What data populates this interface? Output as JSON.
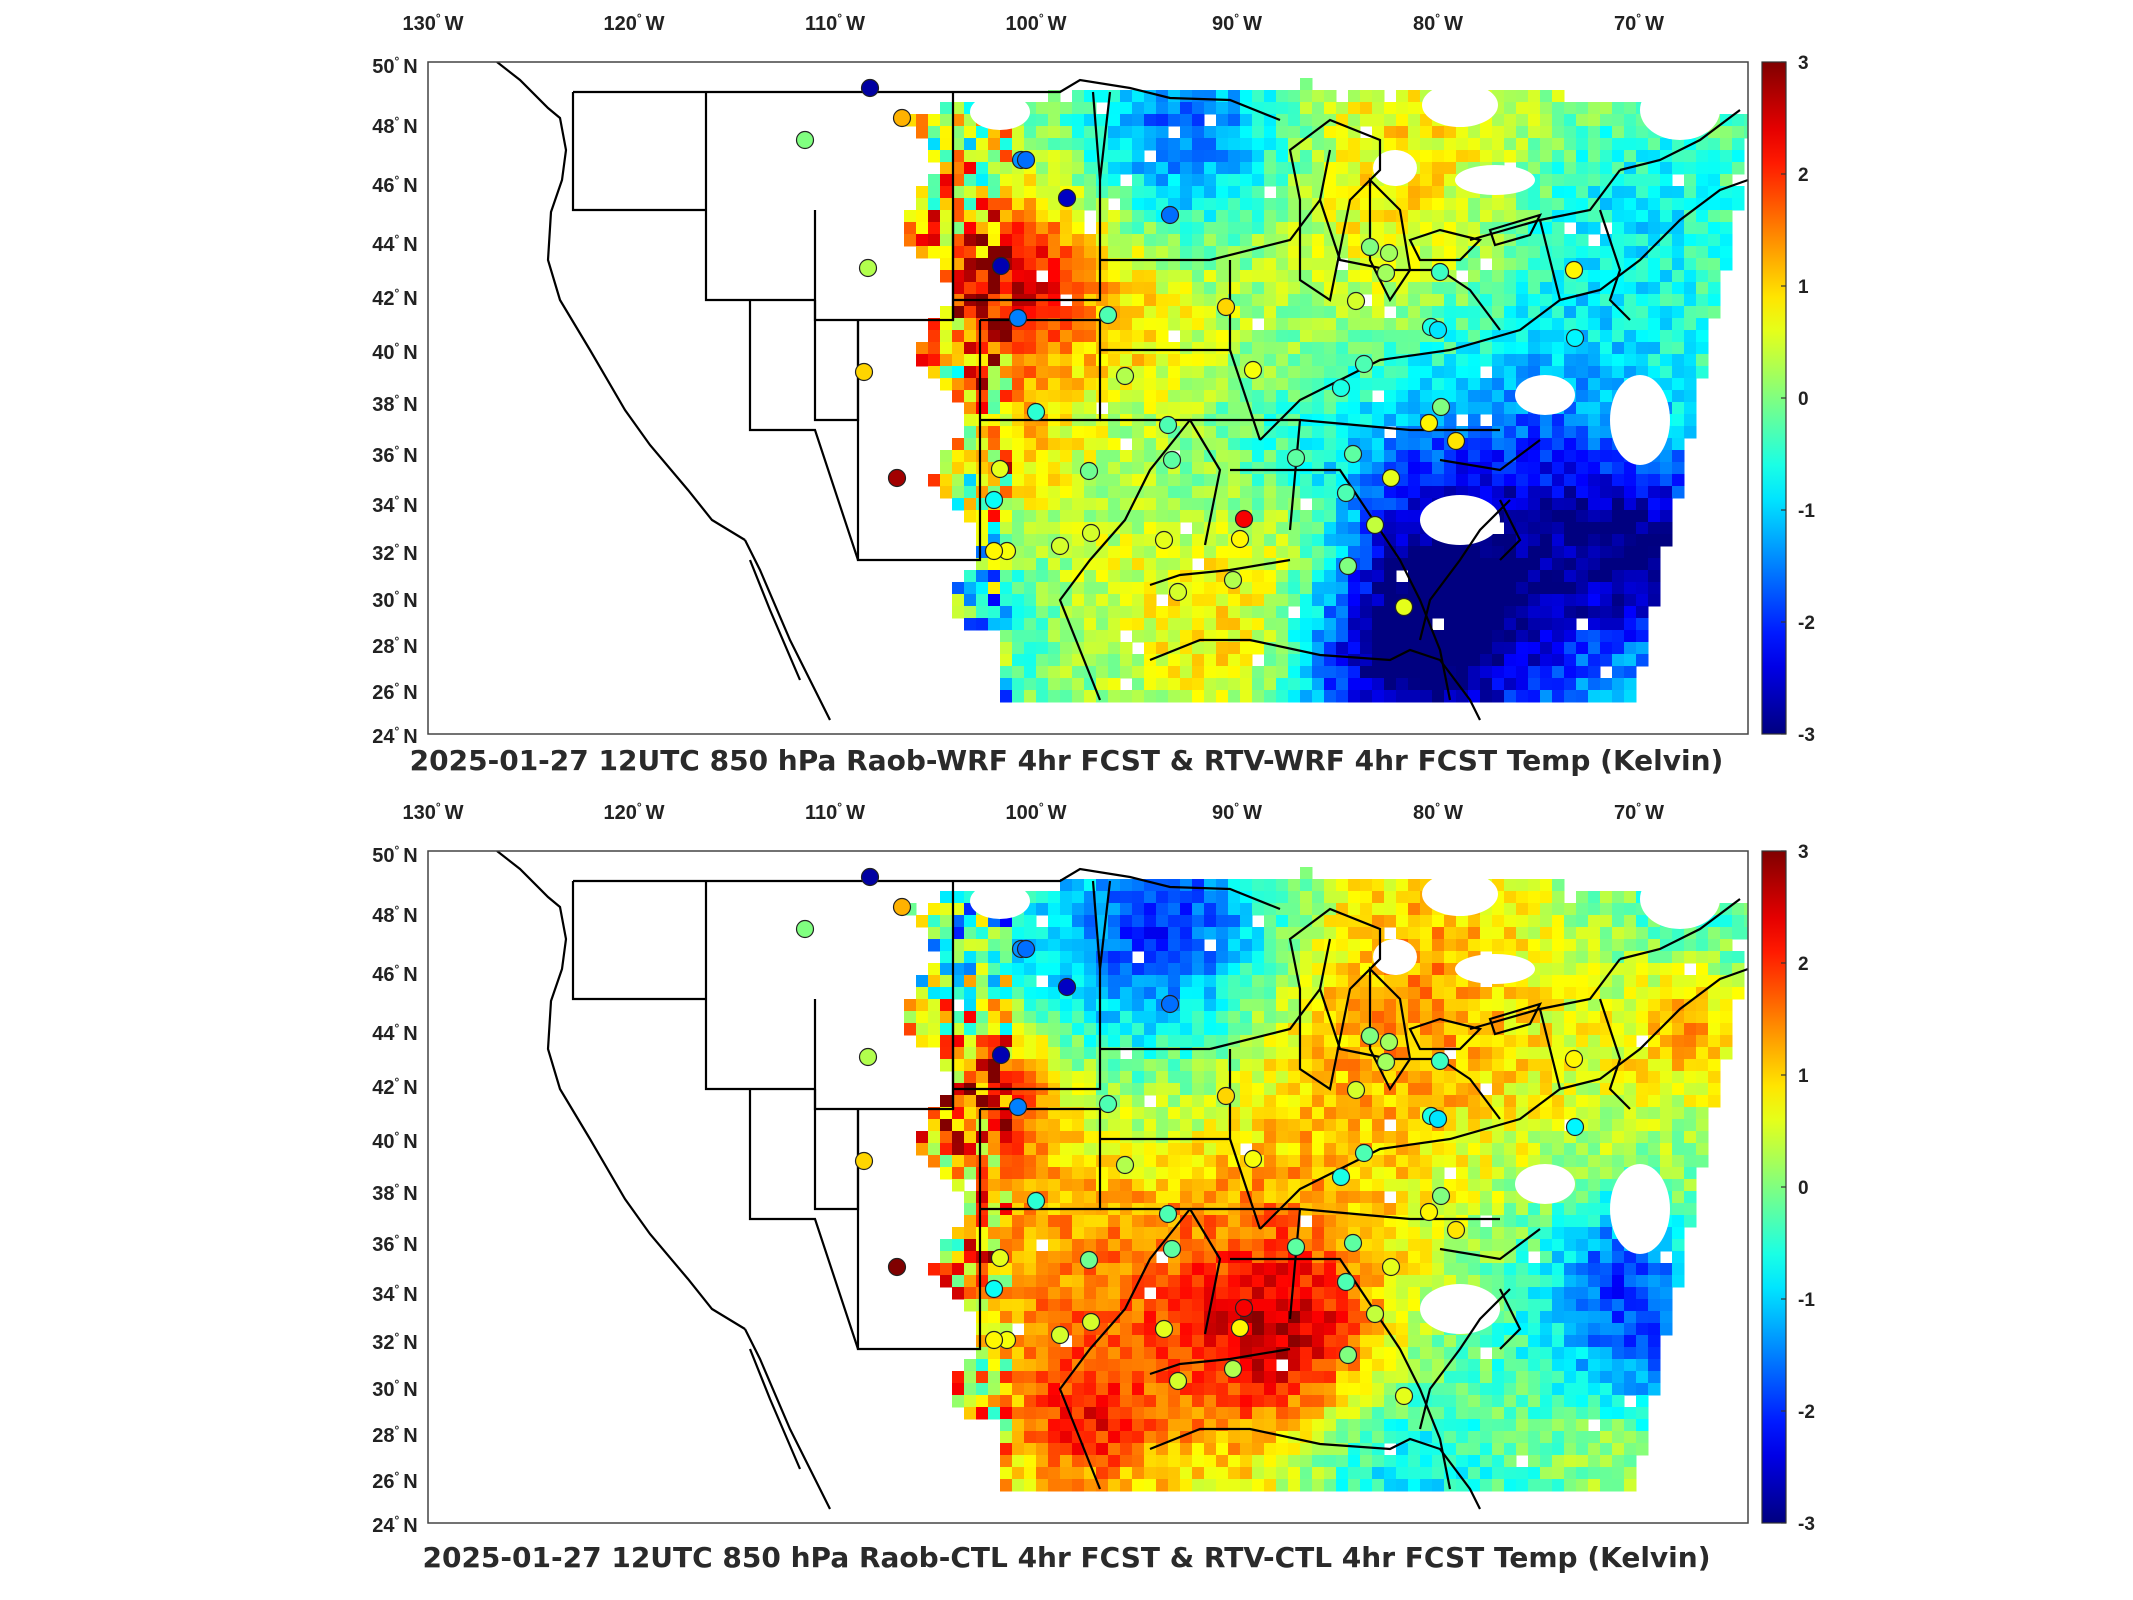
{
  "panels": [
    {
      "title": "2025-01-27 12UTC 850 hPa Raob-WRF 4hr FCST & RTV-WRF 4hr FCST Temp (Kelvin)",
      "raob_values": [
        0.0,
        1.2,
        -2.8,
        -1.4,
        -2.6,
        -2.7,
        -1.6,
        0.3,
        -1.5,
        -0.3,
        -1.6,
        1.0,
        0.3,
        0.7,
        -0.5,
        -0.1,
        -0.3,
        2.3,
        -0.2,
        0.6,
        0.7,
        0.5,
        -0.7,
        1.0,
        2.8,
        0.8,
        0.5,
        0.6,
        0.5,
        0.3,
        0.8,
        -0.2,
        -0.6,
        -0.3,
        0.0,
        0.2,
        0.5,
        0.2,
        -0.4,
        -0.6,
        0.0,
        0.9,
        0.8,
        0.6,
        -0.2,
        0.4,
        -0.3,
        0.0,
        0.6,
        0.8,
        -0.8,
        -0.9
      ]
    },
    {
      "title": "2025-01-27 12UTC 850 hPa Raob-CTL 4hr FCST & RTV-CTL 4hr FCST Temp (Kelvin)",
      "raob_values": [
        0.0,
        1.2,
        -2.8,
        -1.4,
        -2.6,
        -2.7,
        -1.6,
        0.3,
        -1.5,
        -0.3,
        -1.6,
        1.0,
        0.3,
        0.7,
        -0.5,
        -0.1,
        -0.3,
        2.3,
        -0.2,
        0.6,
        0.7,
        0.5,
        -0.7,
        1.0,
        3.0,
        0.8,
        0.5,
        0.6,
        0.5,
        0.3,
        0.8,
        -0.2,
        -0.6,
        -0.3,
        0.0,
        0.2,
        0.5,
        0.2,
        -0.4,
        -0.6,
        0.0,
        0.9,
        0.8,
        0.6,
        -0.2,
        0.4,
        -0.3,
        0.0,
        0.6,
        0.8,
        -0.8,
        -0.9
      ]
    }
  ],
  "lon_ticks": [
    "130",
    "120",
    "110",
    "100",
    "90",
    "80",
    "70"
  ],
  "lon_suffix": "W",
  "lat_ticks": [
    "50",
    "48",
    "46",
    "44",
    "42",
    "40",
    "38",
    "36",
    "34",
    "32",
    "30",
    "28",
    "26",
    "24"
  ],
  "lat_suffix": "N",
  "deg_mark": "°",
  "colorbar": {
    "ticks": [
      "3",
      "2",
      "1",
      "0",
      "-1",
      "-2",
      "-3"
    ],
    "min": -3,
    "max": 3,
    "colormap": "jet"
  },
  "chart_data": {
    "type": "heatmap",
    "map_extent": {
      "lon": [
        -130,
        -65
      ],
      "lat": [
        24,
        50
      ]
    },
    "field": "850 hPa temperature difference (Kelvin)",
    "color_range": [
      -3,
      3
    ]
  }
}
